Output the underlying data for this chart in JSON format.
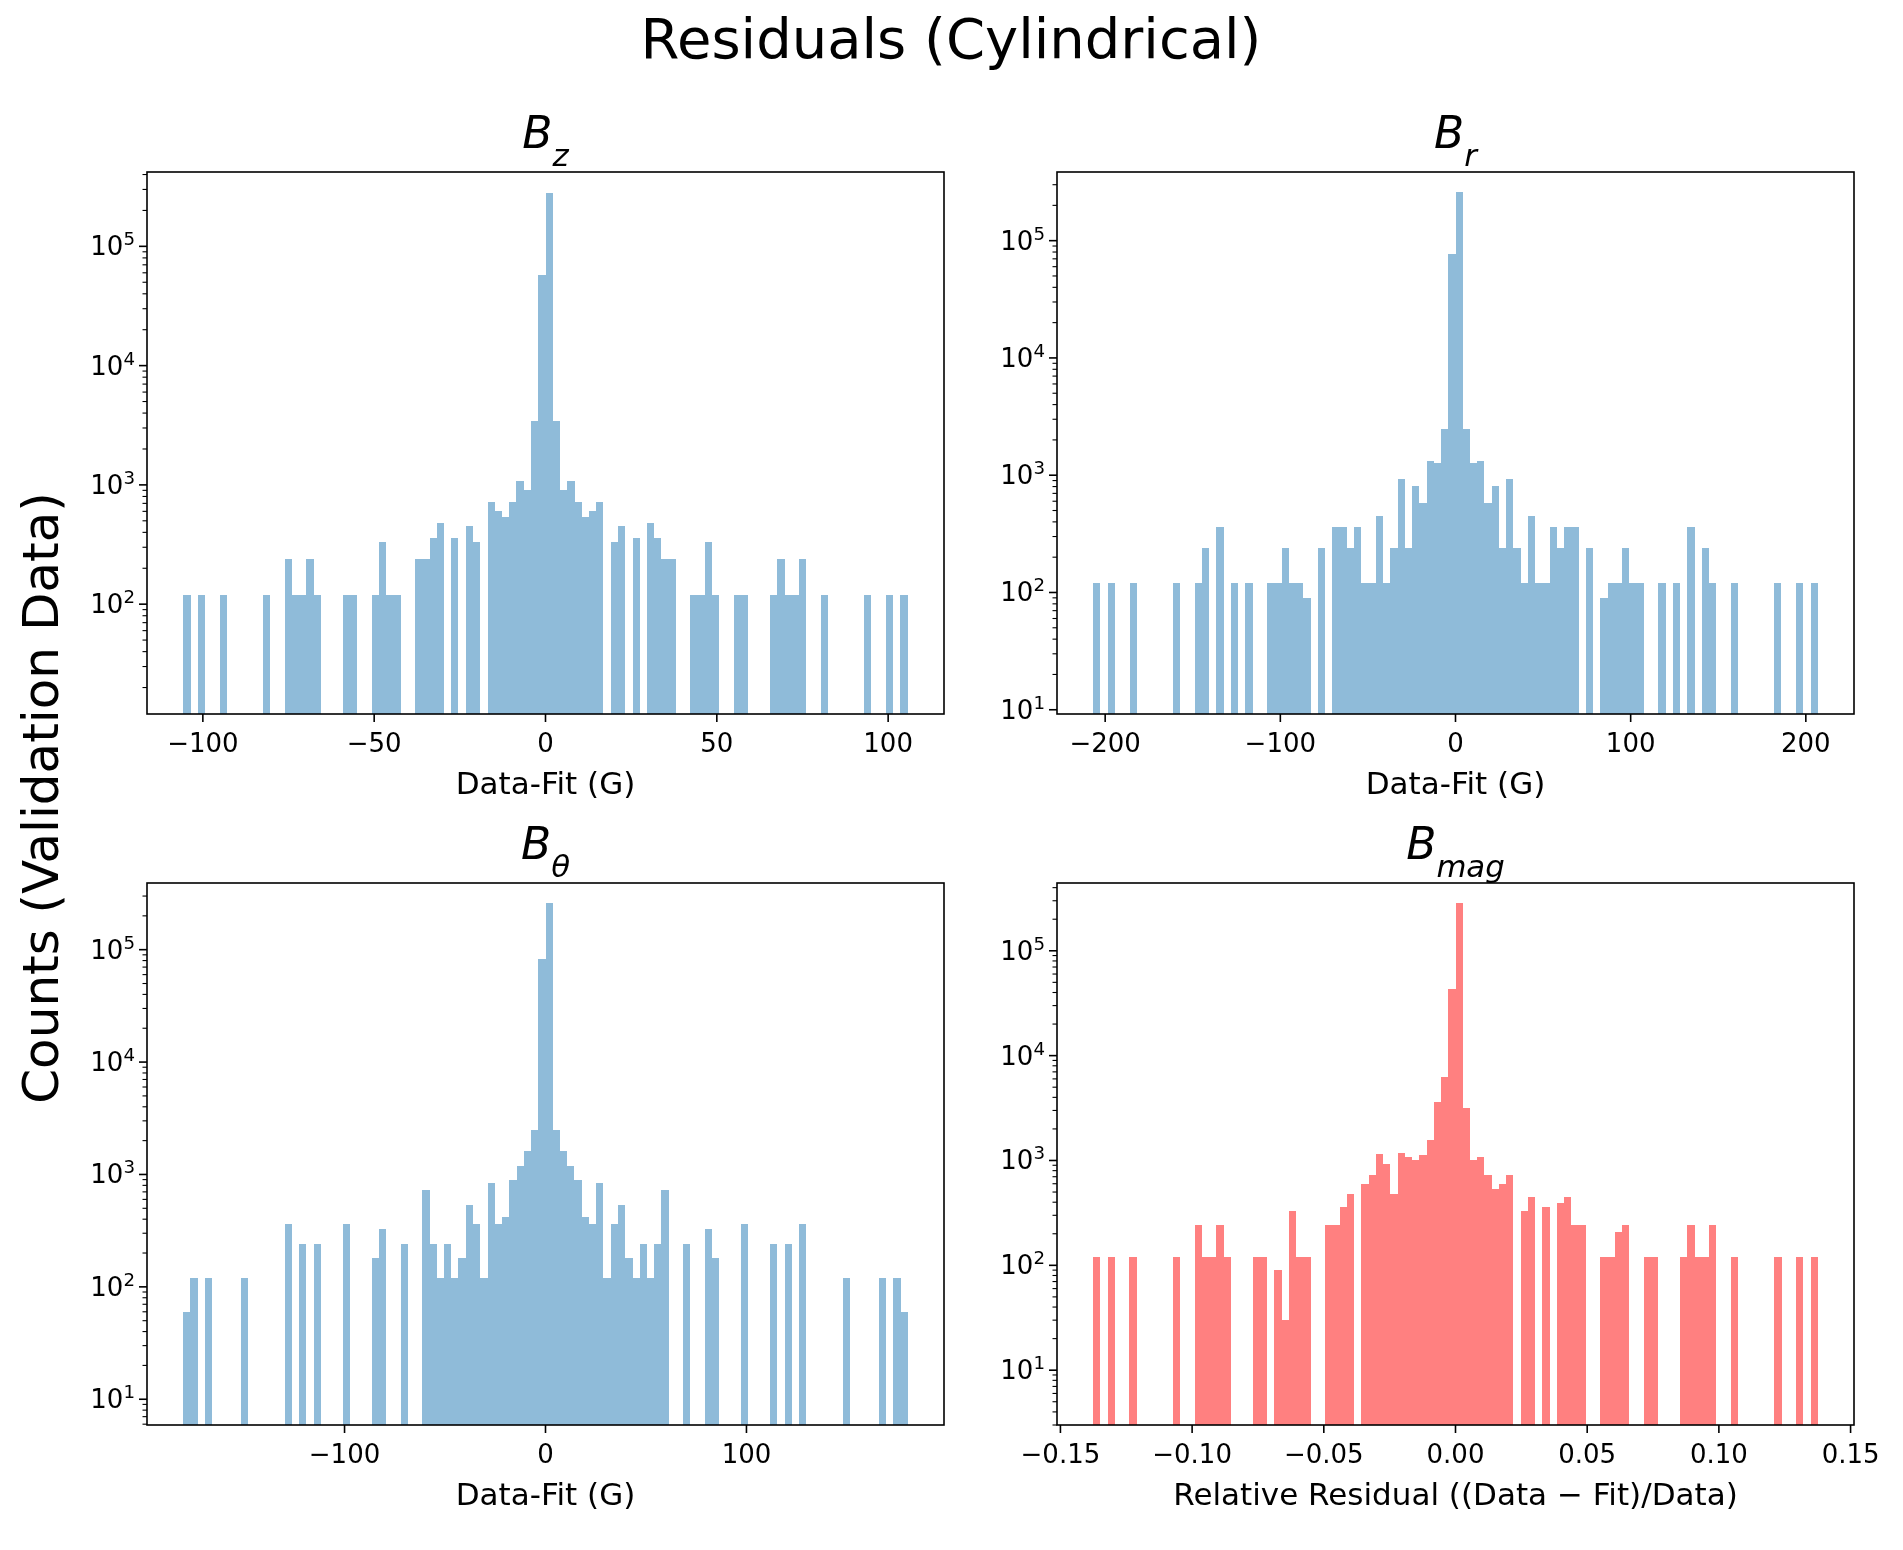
{
  "chart_data": [
    {
      "type": "histogram",
      "title": "B$_{z}$",
      "xlabel": "Data-Fit (G)",
      "color": "#8fbbd9",
      "log": true,
      "bins": [
        -105.7,
        -103.6,
        -101.5,
        -99.4,
        -97.2,
        -95.1,
        -93.0,
        -90.9,
        -88.8,
        -86.7,
        -84.6,
        -82.4,
        -80.3,
        -78.2,
        -76.1,
        -74.0,
        -71.9,
        -69.8,
        -67.6,
        -65.5,
        -63.4,
        -61.3,
        -59.2,
        -57.1,
        -55.0,
        -52.9,
        -50.7,
        -48.6,
        -46.5,
        -44.4,
        -42.3,
        -40.2,
        -38.1,
        -35.9,
        -33.8,
        -31.7,
        -29.6,
        -27.5,
        -25.4,
        -23.3,
        -21.1,
        -19.0,
        -16.9,
        -14.8,
        -12.7,
        -10.6,
        -8.5,
        -6.3,
        -4.2,
        -2.1,
        0,
        2.1,
        4.2,
        6.3,
        8.5,
        10.6,
        12.7,
        14.8,
        16.9,
        19.0,
        21.1,
        23.3,
        25.4,
        27.5,
        29.6,
        31.7,
        33.8,
        35.9,
        38.1,
        40.2,
        42.3,
        44.4,
        46.5,
        48.6,
        50.7,
        52.9,
        55.0,
        57.1,
        59.2,
        61.3,
        63.4,
        65.5,
        67.6,
        69.8,
        71.9,
        74.0,
        76.1,
        78.2,
        80.3,
        82.4,
        84.6,
        86.7,
        88.8,
        90.9,
        93.0,
        95.1,
        97.2,
        99.4,
        101.5,
        103.6,
        105.7
      ],
      "values": [
        120,
        null,
        120,
        null,
        null,
        120,
        null,
        null,
        null,
        null,
        null,
        120,
        null,
        null,
        240,
        120,
        120,
        240,
        120,
        null,
        null,
        null,
        120,
        120,
        null,
        null,
        120,
        330,
        120,
        120,
        null,
        null,
        240,
        240,
        360,
        480,
        null,
        360,
        null,
        450,
        330,
        null,
        720,
        600,
        540,
        720,
        1070,
        900,
        3400,
        58000,
        280000,
        3400,
        900,
        1070,
        720,
        540,
        600,
        720,
        null,
        330,
        450,
        null,
        360,
        null,
        480,
        360,
        240,
        240,
        null,
        null,
        120,
        120,
        330,
        120,
        null,
        null,
        120,
        120,
        null,
        null,
        null,
        120,
        240,
        120,
        120,
        240,
        null,
        null,
        120,
        null,
        null,
        null,
        null,
        null,
        120,
        null,
        null,
        120,
        null,
        120
      ],
      "xlim": [
        -116.3,
        116.3
      ],
      "xticks": [
        {
          "value": -100,
          "label": "−100"
        },
        {
          "value": -50,
          "label": "−50"
        },
        0,
        50,
        100
      ],
      "ylim": [
        12,
        420000
      ],
      "yticks": [
        {
          "value": 20,
          "label": null
        },
        {
          "value": 30,
          "label": null
        },
        {
          "value": 40,
          "label": null
        },
        {
          "value": 50,
          "label": null
        },
        {
          "value": 60,
          "label": null
        },
        {
          "value": 70,
          "label": null
        },
        {
          "value": 80,
          "label": null
        },
        {
          "value": 90,
          "label": null
        },
        {
          "value": 100,
          "label": "10$^{2}$"
        },
        {
          "value": 200,
          "label": null
        },
        {
          "value": 300,
          "label": null
        },
        {
          "value": 400,
          "label": null
        },
        {
          "value": 500,
          "label": null
        },
        {
          "value": 600,
          "label": null
        },
        {
          "value": 700,
          "label": null
        },
        {
          "value": 800,
          "label": null
        },
        {
          "value": 900,
          "label": null
        },
        {
          "value": 1000,
          "label": "10$^{3}$"
        },
        {
          "value": 2000,
          "label": null
        },
        {
          "value": 3000,
          "label": null
        },
        {
          "value": 4000,
          "label": null
        },
        {
          "value": 5000,
          "label": null
        },
        {
          "value": 6000,
          "label": null
        },
        {
          "value": 7000,
          "label": null
        },
        {
          "value": 8000,
          "label": null
        },
        {
          "value": 9000,
          "label": null
        },
        {
          "value": 10000,
          "label": "10$^{4}$"
        },
        {
          "value": 20000,
          "label": null
        },
        {
          "value": 30000,
          "label": null
        },
        {
          "value": 40000,
          "label": null
        },
        {
          "value": 50000,
          "label": null
        },
        {
          "value": 60000,
          "label": null
        },
        {
          "value": 70000,
          "label": null
        },
        {
          "value": 80000,
          "label": null
        },
        {
          "value": 90000,
          "label": null
        },
        {
          "value": 100000,
          "label": "10$^{5}$"
        },
        {
          "value": 200000,
          "label": null
        },
        {
          "value": 300000,
          "label": null
        },
        {
          "value": 400000,
          "label": null
        }
      ]
    },
    {
      "type": "histogram",
      "title": "B$_{r}$",
      "xlabel": "Data-Fit (G)",
      "color": "#8fbbd9",
      "log": true,
      "bins": [
        -206.8,
        -202.7,
        -198.5,
        -194.4,
        -190.3,
        -186.1,
        -182.0,
        -177.8,
        -173.7,
        -169.6,
        -165.4,
        -161.3,
        -157.2,
        -153.0,
        -148.9,
        -144.8,
        -140.6,
        -136.5,
        -132.4,
        -128.2,
        -124.1,
        -119.9,
        -115.8,
        -111.7,
        -107.5,
        -103.4,
        -99.3,
        -95.1,
        -91.0,
        -86.9,
        -82.7,
        -78.6,
        -74.4,
        -70.3,
        -66.2,
        -62.0,
        -57.9,
        -53.8,
        -49.6,
        -45.5,
        -41.4,
        -37.2,
        -33.1,
        -29.0,
        -24.8,
        -20.7,
        -16.5,
        -12.4,
        -8.3,
        -4.1,
        0,
        4.1,
        8.3,
        12.4,
        16.5,
        20.7,
        24.8,
        29.0,
        33.1,
        37.2,
        41.4,
        45.5,
        49.6,
        53.8,
        57.9,
        62.0,
        66.2,
        70.3,
        74.4,
        78.6,
        82.7,
        86.9,
        91.0,
        95.1,
        99.3,
        103.4,
        107.5,
        111.7,
        115.8,
        119.9,
        124.1,
        128.2,
        132.4,
        136.5,
        140.6,
        144.8,
        148.9,
        153.0,
        157.2,
        161.3,
        165.4,
        169.6,
        173.7,
        177.8,
        182.0,
        186.1,
        190.3,
        194.4,
        198.5,
        202.7,
        206.8
      ],
      "values": [
        120,
        null,
        120,
        null,
        null,
        120,
        null,
        null,
        null,
        null,
        null,
        120,
        null,
        null,
        120,
        240,
        null,
        360,
        null,
        120,
        null,
        120,
        null,
        null,
        120,
        120,
        240,
        120,
        120,
        90,
        null,
        240,
        null,
        360,
        360,
        240,
        360,
        120,
        120,
        450,
        120,
        240,
        930,
        240,
        810,
        580,
        1330,
        1260,
        2500,
        77000,
        260000,
        2500,
        1260,
        1330,
        580,
        810,
        240,
        930,
        240,
        120,
        450,
        120,
        120,
        360,
        240,
        360,
        360,
        null,
        240,
        null,
        90,
        120,
        120,
        240,
        120,
        120,
        null,
        null,
        120,
        null,
        120,
        null,
        360,
        null,
        240,
        120,
        null,
        null,
        120,
        null,
        null,
        null,
        null,
        null,
        120,
        null,
        null,
        120,
        null,
        120
      ],
      "xlim": [
        -227.5,
        227.5
      ],
      "xticks": [
        {
          "value": -200,
          "label": "−200"
        },
        {
          "value": -100,
          "label": "−100"
        },
        0,
        100,
        200
      ],
      "ylim": [
        9.2,
        385000
      ],
      "yticks": [
        {
          "value": 10,
          "label": "10$^{1}$"
        },
        {
          "value": 20,
          "label": null
        },
        {
          "value": 30,
          "label": null
        },
        {
          "value": 40,
          "label": null
        },
        {
          "value": 50,
          "label": null
        },
        {
          "value": 60,
          "label": null
        },
        {
          "value": 70,
          "label": null
        },
        {
          "value": 80,
          "label": null
        },
        {
          "value": 90,
          "label": null
        },
        {
          "value": 100,
          "label": "10$^{2}$"
        },
        {
          "value": 200,
          "label": null
        },
        {
          "value": 300,
          "label": null
        },
        {
          "value": 400,
          "label": null
        },
        {
          "value": 500,
          "label": null
        },
        {
          "value": 600,
          "label": null
        },
        {
          "value": 700,
          "label": null
        },
        {
          "value": 800,
          "label": null
        },
        {
          "value": 900,
          "label": null
        },
        {
          "value": 1000,
          "label": "10$^{3}$"
        },
        {
          "value": 2000,
          "label": null
        },
        {
          "value": 3000,
          "label": null
        },
        {
          "value": 4000,
          "label": null
        },
        {
          "value": 5000,
          "label": null
        },
        {
          "value": 6000,
          "label": null
        },
        {
          "value": 7000,
          "label": null
        },
        {
          "value": 8000,
          "label": null
        },
        {
          "value": 9000,
          "label": null
        },
        {
          "value": 10000,
          "label": "10$^{4}$"
        },
        {
          "value": 20000,
          "label": null
        },
        {
          "value": 30000,
          "label": null
        },
        {
          "value": 40000,
          "label": null
        },
        {
          "value": 50000,
          "label": null
        },
        {
          "value": 60000,
          "label": null
        },
        {
          "value": 70000,
          "label": null
        },
        {
          "value": 80000,
          "label": null
        },
        {
          "value": 90000,
          "label": null
        },
        {
          "value": 100000,
          "label": "10$^{5}$"
        },
        {
          "value": 200000,
          "label": null
        },
        {
          "value": 300000,
          "label": null
        }
      ]
    },
    {
      "type": "histogram",
      "title": "B$_{θ}$",
      "xlabel": "Data-Fit (G)",
      "color": "#8fbbd9",
      "log": true,
      "bins": [
        -180.3,
        -176.7,
        -173.1,
        -169.5,
        -165.9,
        -162.3,
        -158.7,
        -155.1,
        -151.5,
        -147.8,
        -144.2,
        -140.6,
        -137.0,
        -133.4,
        -129.8,
        -126.2,
        -122.6,
        -119.0,
        -115.4,
        -111.8,
        -108.2,
        -104.6,
        -101.0,
        -97.4,
        -93.8,
        -90.2,
        -86.5,
        -82.9,
        -79.3,
        -75.7,
        -72.1,
        -68.5,
        -64.9,
        -61.3,
        -57.7,
        -54.1,
        -50.5,
        -46.9,
        -43.3,
        -39.7,
        -36.1,
        -32.5,
        -28.8,
        -25.2,
        -21.6,
        -18.0,
        -14.4,
        -10.8,
        -7.2,
        -3.6,
        0,
        3.6,
        7.2,
        10.8,
        14.4,
        18.0,
        21.6,
        25.2,
        28.8,
        32.5,
        36.1,
        39.7,
        43.3,
        46.9,
        50.5,
        54.1,
        57.7,
        61.3,
        64.9,
        68.5,
        72.1,
        75.7,
        79.3,
        82.9,
        86.5,
        90.2,
        93.8,
        97.4,
        101.0,
        104.6,
        108.2,
        111.8,
        115.4,
        119.0,
        122.6,
        126.2,
        129.8,
        133.4,
        137.0,
        140.6,
        144.2,
        147.8,
        151.5,
        155.1,
        158.7,
        162.3,
        165.9,
        169.5,
        173.1,
        176.7,
        180.3
      ],
      "values": [
        60,
        120,
        null,
        120,
        null,
        null,
        null,
        null,
        120,
        null,
        null,
        null,
        null,
        null,
        360,
        null,
        240,
        null,
        240,
        null,
        null,
        null,
        360,
        null,
        null,
        null,
        180,
        330,
        null,
        null,
        240,
        null,
        null,
        720,
        240,
        120,
        240,
        120,
        180,
        540,
        360,
        120,
        840,
        360,
        420,
        900,
        1200,
        1620,
        2500,
        83000,
        258000,
        2500,
        1620,
        1200,
        900,
        420,
        360,
        840,
        120,
        360,
        540,
        180,
        120,
        240,
        120,
        240,
        720,
        null,
        null,
        240,
        null,
        null,
        330,
        180,
        null,
        null,
        null,
        360,
        null,
        null,
        null,
        240,
        null,
        240,
        null,
        360,
        null,
        null,
        null,
        null,
        null,
        120,
        null,
        null,
        null,
        null,
        120,
        null,
        120,
        60
      ],
      "xlim": [
        -198.3,
        198.3
      ],
      "xticks": [
        {
          "value": -100,
          "label": "−100"
        },
        0,
        100
      ],
      "ylim": [
        5.9,
        392000
      ],
      "yticks": [
        {
          "value": 6,
          "label": null
        },
        {
          "value": 7,
          "label": null
        },
        {
          "value": 8,
          "label": null
        },
        {
          "value": 9,
          "label": null
        },
        {
          "value": 10,
          "label": "10$^{1}$"
        },
        {
          "value": 20,
          "label": null
        },
        {
          "value": 30,
          "label": null
        },
        {
          "value": 40,
          "label": null
        },
        {
          "value": 50,
          "label": null
        },
        {
          "value": 60,
          "label": null
        },
        {
          "value": 70,
          "label": null
        },
        {
          "value": 80,
          "label": null
        },
        {
          "value": 90,
          "label": null
        },
        {
          "value": 100,
          "label": "10$^{2}$"
        },
        {
          "value": 200,
          "label": null
        },
        {
          "value": 300,
          "label": null
        },
        {
          "value": 400,
          "label": null
        },
        {
          "value": 500,
          "label": null
        },
        {
          "value": 600,
          "label": null
        },
        {
          "value": 700,
          "label": null
        },
        {
          "value": 800,
          "label": null
        },
        {
          "value": 900,
          "label": null
        },
        {
          "value": 1000,
          "label": "10$^{3}$"
        },
        {
          "value": 2000,
          "label": null
        },
        {
          "value": 3000,
          "label": null
        },
        {
          "value": 4000,
          "label": null
        },
        {
          "value": 5000,
          "label": null
        },
        {
          "value": 6000,
          "label": null
        },
        {
          "value": 7000,
          "label": null
        },
        {
          "value": 8000,
          "label": null
        },
        {
          "value": 9000,
          "label": null
        },
        {
          "value": 10000,
          "label": "10$^{4}$"
        },
        {
          "value": 20000,
          "label": null
        },
        {
          "value": 30000,
          "label": null
        },
        {
          "value": 40000,
          "label": null
        },
        {
          "value": 50000,
          "label": null
        },
        {
          "value": 60000,
          "label": null
        },
        {
          "value": 70000,
          "label": null
        },
        {
          "value": 80000,
          "label": null
        },
        {
          "value": 90000,
          "label": null
        },
        {
          "value": 100000,
          "label": "10$^{5}$"
        },
        {
          "value": 200000,
          "label": null
        },
        {
          "value": 300000,
          "label": null
        }
      ]
    },
    {
      "type": "histogram",
      "title": "B$_{mag}$",
      "xlabel": "Relative Residual ((Data − Fit)/Data)",
      "color": "#ff8080",
      "log": true,
      "bins": [
        -0.1375,
        -0.1348,
        -0.132,
        -0.1293,
        -0.1265,
        -0.1238,
        -0.121,
        -0.1183,
        -0.1155,
        -0.1128,
        -0.11,
        -0.1073,
        -0.1045,
        -0.1018,
        -0.099,
        -0.0963,
        -0.0935,
        -0.0908,
        -0.088,
        -0.0853,
        -0.0825,
        -0.0798,
        -0.077,
        -0.0743,
        -0.0715,
        -0.0688,
        -0.066,
        -0.0633,
        -0.0605,
        -0.0578,
        -0.055,
        -0.0523,
        -0.0495,
        -0.0468,
        -0.044,
        -0.0413,
        -0.0385,
        -0.0358,
        -0.033,
        -0.0303,
        -0.0275,
        -0.0248,
        -0.022,
        -0.0193,
        -0.0165,
        -0.0138,
        -0.011,
        -0.0083,
        -0.0055,
        -0.0028,
        0,
        0.0028,
        0.0055,
        0.0083,
        0.011,
        0.0138,
        0.0165,
        0.0193,
        0.022,
        0.0248,
        0.0275,
        0.0303,
        0.033,
        0.0358,
        0.0385,
        0.0413,
        0.044,
        0.0468,
        0.0495,
        0.0523,
        0.055,
        0.0578,
        0.0605,
        0.0633,
        0.066,
        0.0688,
        0.0715,
        0.0743,
        0.077,
        0.0798,
        0.0825,
        0.0853,
        0.088,
        0.0908,
        0.0935,
        0.0963,
        0.099,
        0.1018,
        0.1045,
        0.1073,
        0.11,
        0.1128,
        0.1155,
        0.1183,
        0.121,
        0.1238,
        0.1265,
        0.1293,
        0.132,
        0.1348,
        0.1375
      ],
      "values": [
        120,
        null,
        120,
        null,
        null,
        120,
        null,
        null,
        null,
        null,
        null,
        120,
        null,
        null,
        240,
        120,
        120,
        240,
        120,
        null,
        null,
        null,
        120,
        120,
        null,
        90,
        30,
        330,
        120,
        120,
        null,
        null,
        240,
        240,
        360,
        480,
        null,
        600,
        720,
        1160,
        920,
        480,
        1180,
        1080,
        1010,
        1130,
        1560,
        3600,
        6300,
        43000,
        284000,
        3200,
        1010,
        1070,
        720,
        540,
        600,
        720,
        null,
        330,
        450,
        null,
        360,
        null,
        390,
        450,
        240,
        240,
        null,
        null,
        120,
        120,
        210,
        240,
        null,
        null,
        120,
        120,
        null,
        null,
        null,
        120,
        240,
        120,
        120,
        240,
        null,
        null,
        120,
        null,
        null,
        null,
        null,
        null,
        120,
        null,
        null,
        120,
        null,
        120
      ],
      "xlim": [
        -0.1513,
        0.1513
      ],
      "xticks": [
        {
          "value": -0.15,
          "label": "−0.15"
        },
        {
          "value": -0.1,
          "label": "−0.10"
        },
        {
          "value": -0.05,
          "label": "−0.05"
        },
        {
          "value": 0,
          "label": "0.00"
        },
        {
          "value": 0.05,
          "label": "0.05"
        },
        {
          "value": 0.1,
          "label": "0.10"
        },
        {
          "value": 0.15,
          "label": "0.15"
        }
      ],
      "ylim": [
        3.0,
        443000
      ],
      "yticks": [
        {
          "value": 3,
          "label": null
        },
        {
          "value": 4,
          "label": null
        },
        {
          "value": 5,
          "label": null
        },
        {
          "value": 6,
          "label": null
        },
        {
          "value": 7,
          "label": null
        },
        {
          "value": 8,
          "label": null
        },
        {
          "value": 9,
          "label": null
        },
        {
          "value": 10,
          "label": "10$^{1}$"
        },
        {
          "value": 20,
          "label": null
        },
        {
          "value": 30,
          "label": null
        },
        {
          "value": 40,
          "label": null
        },
        {
          "value": 50,
          "label": null
        },
        {
          "value": 60,
          "label": null
        },
        {
          "value": 70,
          "label": null
        },
        {
          "value": 80,
          "label": null
        },
        {
          "value": 90,
          "label": null
        },
        {
          "value": 100,
          "label": "10$^{2}$"
        },
        {
          "value": 200,
          "label": null
        },
        {
          "value": 300,
          "label": null
        },
        {
          "value": 400,
          "label": null
        },
        {
          "value": 500,
          "label": null
        },
        {
          "value": 600,
          "label": null
        },
        {
          "value": 700,
          "label": null
        },
        {
          "value": 800,
          "label": null
        },
        {
          "value": 900,
          "label": null
        },
        {
          "value": 1000,
          "label": "10$^{3}$"
        },
        {
          "value": 2000,
          "label": null
        },
        {
          "value": 3000,
          "label": null
        },
        {
          "value": 4000,
          "label": null
        },
        {
          "value": 5000,
          "label": null
        },
        {
          "value": 6000,
          "label": null
        },
        {
          "value": 7000,
          "label": null
        },
        {
          "value": 8000,
          "label": null
        },
        {
          "value": 9000,
          "label": null
        },
        {
          "value": 10000,
          "label": "10$^{4}$"
        },
        {
          "value": 20000,
          "label": null
        },
        {
          "value": 30000,
          "label": null
        },
        {
          "value": 40000,
          "label": null
        },
        {
          "value": 50000,
          "label": null
        },
        {
          "value": 60000,
          "label": null
        },
        {
          "value": 70000,
          "label": null
        },
        {
          "value": 80000,
          "label": null
        },
        {
          "value": 90000,
          "label": null
        },
        {
          "value": 100000,
          "label": "10$^{5}$"
        },
        {
          "value": 200000,
          "label": null
        },
        {
          "value": 300000,
          "label": null
        },
        {
          "value": 400000,
          "label": null
        }
      ]
    },
    {
      "type": "other",
      "title": "Residuals (Cylindrical)",
      "ylabel": "Counts (Validation Data)"
    }
  ]
}
